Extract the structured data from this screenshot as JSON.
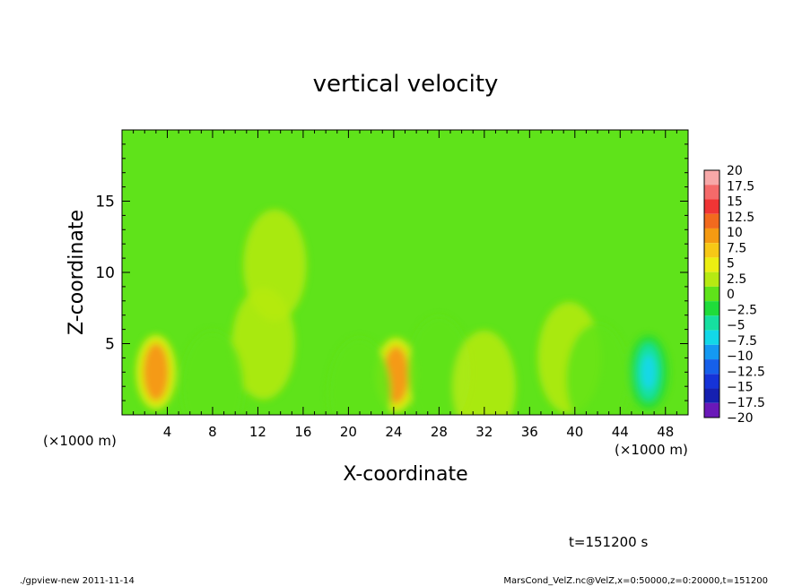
{
  "chart_data": {
    "type": "heatmap",
    "title": "vertical velocity",
    "xlabel": "X-coordinate",
    "ylabel": "Z-coordinate",
    "x_unit_left": "(×1000 m)",
    "x_unit_right": "(×1000 m)",
    "xlim": [
      0,
      50
    ],
    "ylim": [
      0,
      20
    ],
    "x_ticks": [
      4,
      8,
      12,
      16,
      20,
      24,
      28,
      32,
      36,
      40,
      44,
      48
    ],
    "y_ticks": [
      5,
      10,
      15
    ],
    "time_label": "t=151200 s",
    "colorbar": {
      "levels": [
        "20",
        "17.5",
        "15",
        "12.5",
        "10",
        "7.5",
        "5",
        "2.5",
        "0",
        "−2.5",
        "−5",
        "−7.5",
        "−10",
        "−12.5",
        "−15",
        "−17.5",
        "−20"
      ],
      "colors": [
        "#f7a8a8",
        "#f56a6a",
        "#f03535",
        "#f26a1e",
        "#f59a12",
        "#f7c816",
        "#ecee12",
        "#b6ea12",
        "#5fe31a",
        "#1fdc3a",
        "#16e0a0",
        "#12d8e8",
        "#1499f2",
        "#1660ea",
        "#1533d8",
        "#1520b0",
        "#6a18b8"
      ]
    },
    "features": [
      {
        "x": 3.0,
        "z": 3.0,
        "w": 9.0
      },
      {
        "x": 24.2,
        "z": 2.8,
        "w": 9.0
      },
      {
        "x": 46.5,
        "z": 3.0,
        "w": -8.0
      },
      {
        "x": 12.5,
        "z": 5.0,
        "w": 3.5
      },
      {
        "x": 13.5,
        "z": 10.5,
        "w": 1.2
      },
      {
        "x": 8.0,
        "z": 2.0,
        "w": -3.5
      },
      {
        "x": 21.0,
        "z": 1.5,
        "w": -4.0
      },
      {
        "x": 28.0,
        "z": 3.0,
        "w": -3.5
      },
      {
        "x": 39.5,
        "z": 4.0,
        "w": 2.5
      },
      {
        "x": 32.0,
        "z": 2.0,
        "w": 1.8
      },
      {
        "x": 42.0,
        "z": 2.5,
        "w": -2.0
      }
    ]
  },
  "footer": {
    "program": "./gpview-new  2011-11-14",
    "source": "MarsCond_VelZ.nc@VelZ,x=0:50000,z=0:20000,t=151200"
  }
}
